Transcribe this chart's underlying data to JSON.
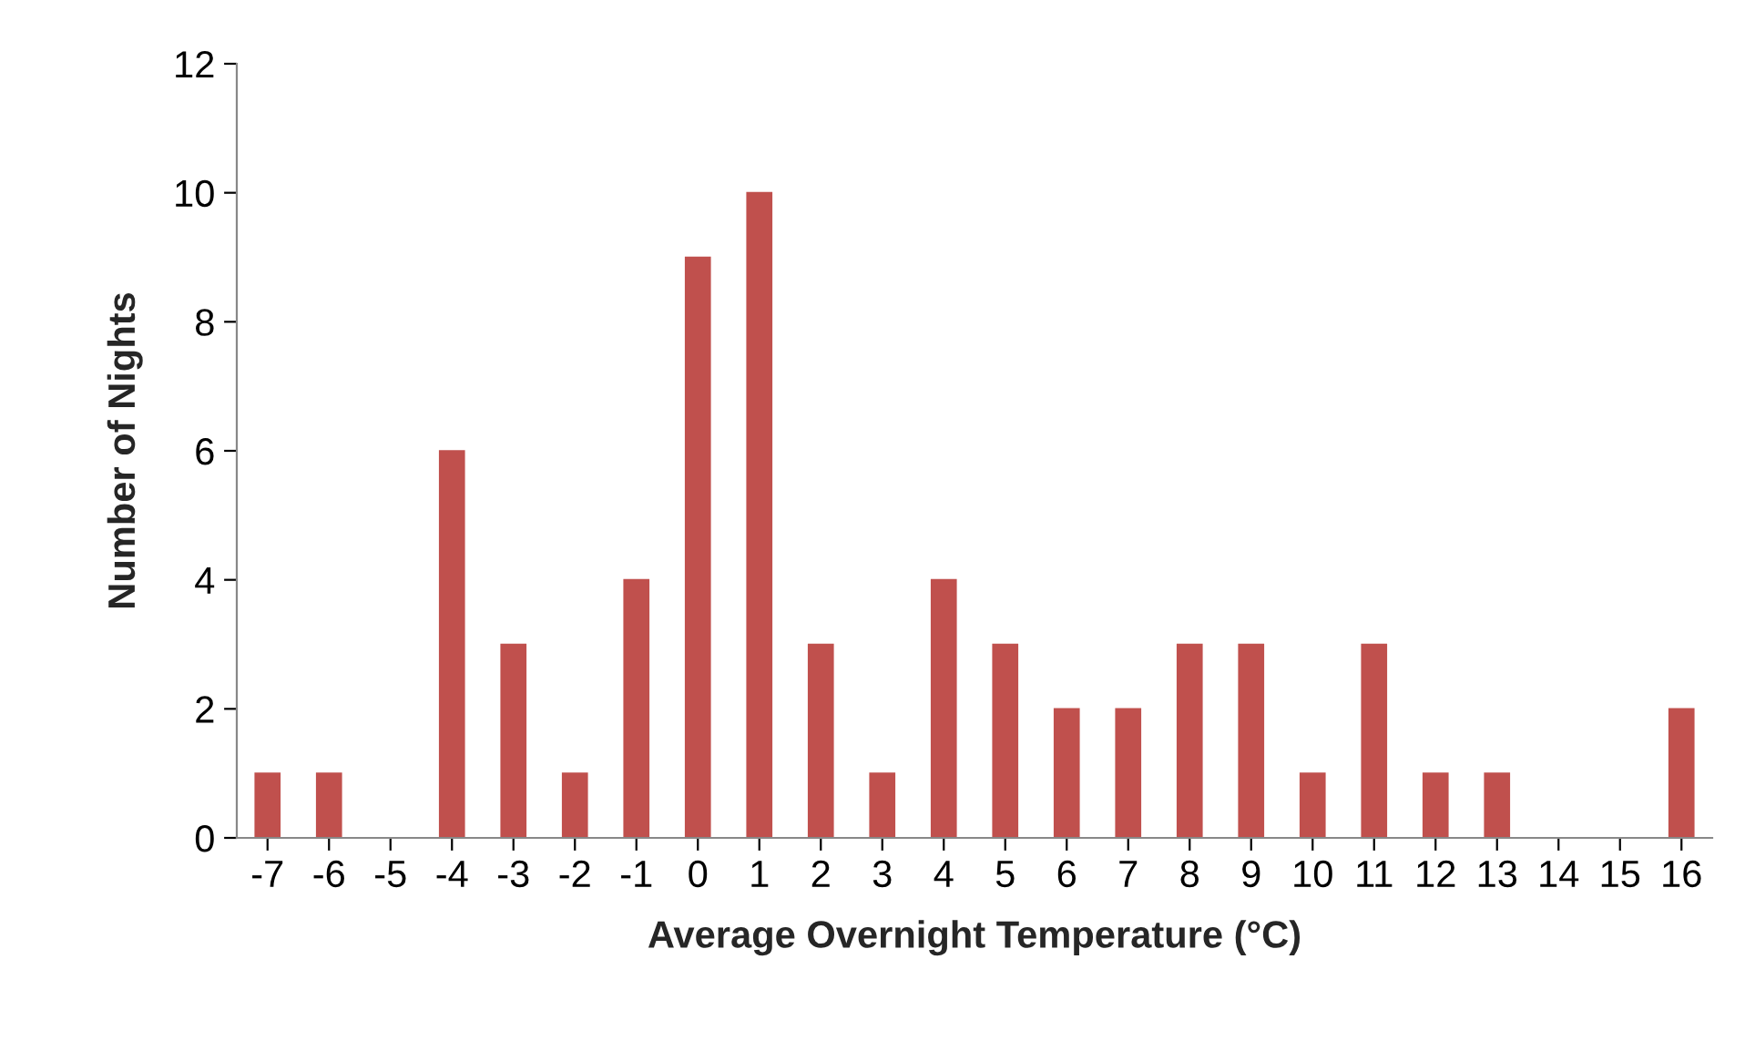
{
  "chart_data": {
    "type": "bar",
    "xlabel": "Average Overnight Temperature (°C)",
    "ylabel": "Number of Nights",
    "categories": [
      "-7",
      "-6",
      "-5",
      "-4",
      "-3",
      "-2",
      "-1",
      "0",
      "1",
      "2",
      "3",
      "4",
      "5",
      "6",
      "7",
      "8",
      "9",
      "10",
      "11",
      "12",
      "13",
      "14",
      "15",
      "16"
    ],
    "values": [
      1,
      1,
      0,
      6,
      3,
      1,
      4,
      9,
      10,
      3,
      1,
      4,
      3,
      2,
      2,
      3,
      3,
      1,
      3,
      1,
      1,
      0,
      0,
      2
    ],
    "color": "#c0504d",
    "ylim": [
      0,
      12
    ],
    "yticks": [
      0,
      2,
      4,
      6,
      8,
      10,
      12
    ],
    "grid": false,
    "legend": false
  }
}
